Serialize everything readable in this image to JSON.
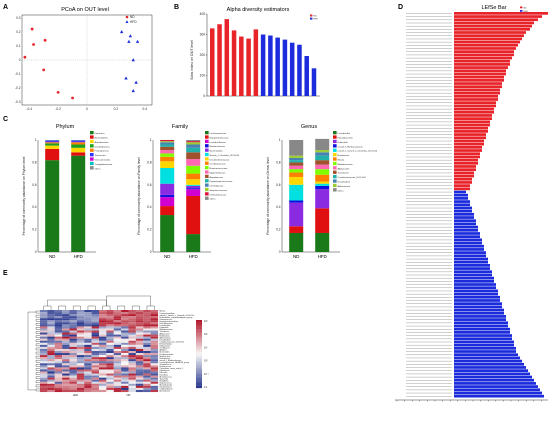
{
  "colors": {
    "nd": "#e8242a",
    "hfd": "#1c2cdc",
    "heat_high": "#b2182b",
    "heat_mid": "#f7f7f7",
    "heat_low": "#2b3a8f"
  },
  "panel_letters": {
    "a": "A",
    "b": "B",
    "c": "C",
    "d": "D",
    "e": "E"
  },
  "chart_data": [
    {
      "id": "pcoa",
      "type": "scatter",
      "title": "PCoA on OUT level",
      "xlim": [
        -0.45,
        0.45
      ],
      "ylim": [
        -0.32,
        0.32
      ],
      "xticks": [
        "-0.4",
        "-0.2",
        "0",
        "0.2",
        "0.4"
      ],
      "yticks": [
        "0.3",
        "0.2",
        "0.1",
        "0",
        "-0.1",
        "-0.2",
        "-0.3"
      ],
      "legend": [
        {
          "name": "ND",
          "color": "#e8242a",
          "marker": "circle"
        },
        {
          "name": "HFD",
          "color": "#1c2cdc",
          "marker": "triangle"
        }
      ],
      "series": [
        {
          "name": "ND",
          "points": [
            [
              -0.38,
              0.22
            ],
            [
              -0.29,
              0.14
            ],
            [
              -0.37,
              0.11
            ],
            [
              -0.43,
              0.02
            ],
            [
              -0.3,
              -0.07
            ],
            [
              -0.1,
              -0.27
            ],
            [
              -0.2,
              -0.23
            ]
          ]
        },
        {
          "name": "HFD",
          "points": [
            [
              0.24,
              0.2
            ],
            [
              0.3,
              0.17
            ],
            [
              0.29,
              0.13
            ],
            [
              0.35,
              0.13
            ],
            [
              0.32,
              0.0
            ],
            [
              0.27,
              -0.13
            ],
            [
              0.34,
              -0.16
            ],
            [
              0.32,
              -0.22
            ]
          ]
        }
      ]
    },
    {
      "id": "alpha",
      "type": "bar",
      "title": "Alpha diversity estimators",
      "ylabel": "Sobs index on OUT level",
      "yticks": [
        "400",
        "300",
        "200",
        "100",
        "0"
      ],
      "ylim": [
        0,
        400
      ],
      "legend": [
        {
          "name": "ND",
          "color": "#e8242a"
        },
        {
          "name": "HFD",
          "color": "#1c2cdc"
        }
      ],
      "series": [
        {
          "name": "ND",
          "values": [
            330,
            350,
            375,
            320,
            290,
            280,
            325
          ]
        },
        {
          "name": "HFD",
          "values": [
            300,
            295,
            285,
            275,
            260,
            250,
            195,
            135
          ]
        }
      ]
    },
    {
      "id": "phylum",
      "type": "bar",
      "title": "Phylum",
      "ylabel": "Percentage of community abundance on Phylum level",
      "categories": [
        "ND",
        "HFD"
      ],
      "yticks": [
        "1",
        "0.8",
        "0.6",
        "0.4",
        "0.2",
        "0"
      ],
      "ylim": [
        0,
        1
      ],
      "series": [
        {
          "name": "Firmicutes",
          "color": "#1a7a1a",
          "values": [
            0.82,
            0.86
          ]
        },
        {
          "name": "Bacteroidetes",
          "color": "#e01010",
          "values": [
            0.1,
            0.03
          ]
        },
        {
          "name": "Actinobacteria",
          "color": "#ffd700",
          "values": [
            0.03,
            0.04
          ]
        },
        {
          "name": "Desulfobacteria",
          "color": "#20a020",
          "values": [
            0.02,
            0.03
          ]
        },
        {
          "name": "Proteobacteria",
          "color": "#ff7f00",
          "values": [
            0.01,
            0.02
          ]
        },
        {
          "name": "Tenericutes",
          "color": "#3030ff",
          "values": [
            0.01,
            0.01
          ]
        },
        {
          "name": "Verrucomicrobia",
          "color": "#d000d0",
          "values": [
            0.005,
            0.005
          ]
        },
        {
          "name": "Campylobacterota",
          "color": "#00c0c0",
          "values": [
            0.005,
            0.005
          ]
        },
        {
          "name": "others",
          "color": "#888888",
          "values": [
            0.0,
            0.0
          ]
        }
      ]
    },
    {
      "id": "family",
      "type": "bar",
      "title": "Family",
      "ylabel": "Percentage of community abundance on Family level",
      "categories": [
        "ND",
        "HFD"
      ],
      "yticks": [
        "1",
        "0.8",
        "0.6",
        "0.4",
        "0.2",
        "0"
      ],
      "ylim": [
        0,
        1
      ],
      "series": [
        {
          "name": "Lachnospiraceae",
          "color": "#1a7a1a",
          "values": [
            0.33,
            0.16
          ]
        },
        {
          "name": "Erysipelotrichaceae",
          "color": "#e01010",
          "values": [
            0.08,
            0.34
          ]
        },
        {
          "name": "Lactobacillaceae",
          "color": "#d000d0",
          "values": [
            0.08,
            0.06
          ]
        },
        {
          "name": "Muribaculaceae",
          "color": "#1010e0",
          "values": [
            0.02,
            0.01
          ]
        },
        {
          "name": "Bacteroidales",
          "color": "#8a2be2",
          "values": [
            0.1,
            0.02
          ]
        },
        {
          "name": "Norank_f_Clostridia_UCG-014",
          "color": "#00e0e0",
          "values": [
            0.14,
            0.01
          ]
        },
        {
          "name": "Desulfovibrionaceae",
          "color": "#ffd700",
          "values": [
            0.06,
            0.05
          ]
        },
        {
          "name": "Oscillospiraceae",
          "color": "#ff7f00",
          "values": [
            0.04,
            0.05
          ]
        },
        {
          "name": "Ruminococcaceae",
          "color": "#7fff00",
          "values": [
            0.03,
            0.07
          ]
        },
        {
          "name": "Eggerthellaceae",
          "color": "#ff69b4",
          "values": [
            0.03,
            0.06
          ]
        },
        {
          "name": "Atopobiaceae",
          "color": "#a0522d",
          "values": [
            0.03,
            0.06
          ]
        },
        {
          "name": "Peptostreptococcaceae",
          "color": "#20b2aa",
          "values": [
            0.02,
            0.04
          ]
        },
        {
          "name": "Clostridiaceae",
          "color": "#4682b4",
          "values": [
            0.02,
            0.03
          ]
        },
        {
          "name": "Streptococcaceae",
          "color": "#9acd32",
          "values": [
            0.01,
            0.02
          ]
        },
        {
          "name": "Defluviitaleaceae",
          "color": "#dc143c",
          "values": [
            0.01,
            0.01
          ]
        },
        {
          "name": "others",
          "color": "#888888",
          "values": [
            0.0,
            0.01
          ]
        }
      ]
    },
    {
      "id": "genus",
      "type": "bar",
      "title": "Genus",
      "ylabel": "Percentage of community abundance on Genus level",
      "categories": [
        "ND",
        "HFD"
      ],
      "yticks": [
        "1",
        "0.8",
        "0.6",
        "0.4",
        "0.2",
        "0"
      ],
      "ylim": [
        0,
        1
      ],
      "series": [
        {
          "name": "Lactobacillus",
          "color": "#1a7a1a",
          "values": [
            0.17,
            0.17
          ]
        },
        {
          "name": "Faecalibaculum",
          "color": "#e01010",
          "values": [
            0.06,
            0.22
          ]
        },
        {
          "name": "Dubosiella",
          "color": "#8a2be2",
          "values": [
            0.21,
            0.17
          ]
        },
        {
          "name": "norank_f_Muribaculaceae",
          "color": "#1010e0",
          "values": [
            0.02,
            0.03
          ]
        },
        {
          "name": "norank_f_norank_o_Clostridia_UCG-014",
          "color": "#00e0e0",
          "values": [
            0.14,
            0.02
          ]
        },
        {
          "name": "Romboutsia",
          "color": "#ffd700",
          "values": [
            0.07,
            0.02
          ]
        },
        {
          "name": "Blautia",
          "color": "#ff7f00",
          "values": [
            0.04,
            0.06
          ]
        },
        {
          "name": "Bifidobacterium",
          "color": "#7fff00",
          "values": [
            0.03,
            0.05
          ]
        },
        {
          "name": "Allobaculum",
          "color": "#ff69b4",
          "values": [
            0.03,
            0.04
          ]
        },
        {
          "name": "Turicibacter",
          "color": "#a0522d",
          "values": [
            0.03,
            0.04
          ]
        },
        {
          "name": "Coriobacteriaceae_UCG-002",
          "color": "#20b2aa",
          "values": [
            0.02,
            0.04
          ]
        },
        {
          "name": "Desulfovibrio",
          "color": "#4682b4",
          "values": [
            0.02,
            0.03
          ]
        },
        {
          "name": "Akkermansia",
          "color": "#9acd32",
          "values": [
            0.02,
            0.02
          ]
        },
        {
          "name": "others",
          "color": "#888888",
          "values": [
            0.14,
            0.1
          ]
        }
      ]
    },
    {
      "id": "lefse",
      "type": "bar",
      "title": "LEfSe Bar",
      "legend": [
        {
          "name": "ND",
          "color": "#e8242a"
        },
        {
          "name": "HFD",
          "color": "#1c2cdc"
        }
      ],
      "series": [
        {
          "name": "ND",
          "values": [
            4.7,
            4.4,
            4.2,
            4.0,
            3.9,
            3.8,
            3.6,
            3.5,
            3.4,
            3.3,
            3.2,
            3.1,
            3.0,
            3.0,
            2.9,
            2.8,
            2.8,
            2.7,
            2.6,
            2.6,
            2.5,
            2.5,
            2.4,
            2.4,
            2.3,
            2.3,
            2.2,
            2.2,
            2.1,
            2.1,
            2.0,
            2.0,
            1.9,
            1.9,
            1.8,
            1.8,
            1.7,
            1.7,
            1.6,
            1.6,
            1.5,
            1.5,
            1.4,
            1.4,
            1.3,
            1.3,
            1.2,
            1.2,
            1.1,
            1.1,
            1.0,
            1.0,
            0.9,
            0.9,
            0.8,
            0.8
          ]
        },
        {
          "name": "HFD",
          "values": [
            0.6,
            0.7,
            0.7,
            0.8,
            0.8,
            0.9,
            0.9,
            1.0,
            1.0,
            1.1,
            1.1,
            1.2,
            1.2,
            1.3,
            1.3,
            1.4,
            1.4,
            1.5,
            1.5,
            1.6,
            1.6,
            1.7,
            1.7,
            1.8,
            1.8,
            1.9,
            1.9,
            2.0,
            2.0,
            2.1,
            2.1,
            2.2,
            2.2,
            2.3,
            2.3,
            2.4,
            2.4,
            2.5,
            2.5,
            2.6,
            2.6,
            2.7,
            2.7,
            2.8,
            2.8,
            2.9,
            2.9,
            3.0,
            3.0,
            3.1,
            3.1,
            3.2,
            3.3,
            3.4,
            3.5,
            3.6,
            3.7,
            3.8,
            3.9,
            4.0,
            4.1,
            4.2,
            4.3,
            4.4,
            4.5
          ]
        }
      ]
    },
    {
      "id": "heatmap",
      "type": "heatmap",
      "group_labels": [
        "HFD",
        "ND"
      ],
      "scale_labels": [
        "10³",
        "10²",
        "10¹",
        "10⁰",
        "10⁻¹",
        "0.1"
      ],
      "row_labels": [
        "Blautia",
        "Lachnoclostridium",
        "norank_f_norank_o_Clostridia_UCG-014",
        "Eubacterium_coprostanoligenes_group",
        "Ruminococcus",
        "Erysipelatoclostridium",
        "Faecalibaculum",
        "Lactobacillus",
        "Dubosiella",
        "Bifidobacterium",
        "Turicibacter",
        "Allobaculum",
        "Romboutsia",
        "Akkermansia",
        "Desulfovibrio",
        "Coriobacteriaceae_UCG-002",
        "Enterorhabdus",
        "Ileibacterium",
        "Oscillibacter",
        "Alistipes",
        "Bacteroides",
        "Parabacteroides",
        "Muribaculum",
        "Helicobacter",
        "norank_f_Muribaculaceae",
        "Lachnospiraceae_NK4A136_group",
        "Streptococcus",
        "Enterococcus",
        "Clostridium_sensu_stricto_1",
        "Odoribacter",
        "Rikenella",
        "Roseburia",
        "Anaerotruncus",
        "Tyzzerella",
        "Harryflintia",
        "Butyricicoccus",
        "Marvinbryantia",
        "Intestinimonas",
        "Colidextribacter",
        "Acetatifactor"
      ]
    }
  ]
}
